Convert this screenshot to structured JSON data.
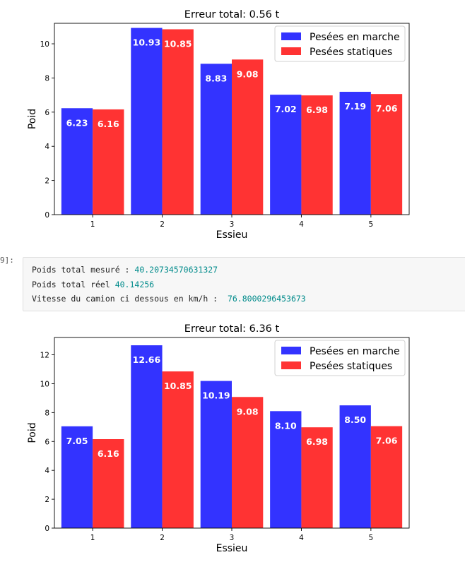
{
  "output_cell": {
    "prompt": "9]:",
    "lines": [
      {
        "label": "Poids total mesuré : ",
        "value": "40.20734570631327"
      },
      {
        "label": "Poids total réel ",
        "value": "40.14256"
      },
      {
        "label": "Vitesse du camion ci dessous en km/h :  ",
        "value": "76.8000296453673"
      }
    ]
  },
  "colors": {
    "marche": "#3333ff",
    "statique": "#ff3333"
  },
  "chart_data": [
    {
      "type": "bar",
      "title": "Erreur total: 0.56 t",
      "xlabel": "Essieu",
      "ylabel": "Poid",
      "categories": [
        "1",
        "2",
        "3",
        "4",
        "5"
      ],
      "ylim": [
        0,
        11.2
      ],
      "yticks": [
        0,
        2,
        4,
        6,
        8,
        10
      ],
      "legend": "top-right",
      "grid": false,
      "series": [
        {
          "name": "Pesées en marche",
          "values": [
            6.23,
            10.93,
            8.83,
            7.02,
            7.19
          ],
          "labels": [
            "6.23",
            "10.93",
            "8.83",
            "7.02",
            "7.19"
          ]
        },
        {
          "name": "Pesées statiques",
          "values": [
            6.16,
            10.85,
            9.08,
            6.98,
            7.06
          ],
          "labels": [
            "6.16",
            "10.85",
            "9.08",
            "6.98",
            "7.06"
          ]
        }
      ]
    },
    {
      "type": "bar",
      "title": "Erreur total: 6.36 t",
      "xlabel": "Essieu",
      "ylabel": "Poid",
      "categories": [
        "1",
        "2",
        "3",
        "4",
        "5"
      ],
      "ylim": [
        0,
        13.2
      ],
      "yticks": [
        0,
        2,
        4,
        6,
        8,
        10,
        12
      ],
      "legend": "top-right",
      "grid": false,
      "series": [
        {
          "name": "Pesées en marche",
          "values": [
            7.05,
            12.66,
            10.19,
            8.1,
            8.5
          ],
          "labels": [
            "7.05",
            "12.66",
            "10.19",
            "8.10",
            "8.50"
          ]
        },
        {
          "name": "Pesées statiques",
          "values": [
            6.16,
            10.85,
            9.08,
            6.98,
            7.06
          ],
          "labels": [
            "6.16",
            "10.85",
            "9.08",
            "6.98",
            "7.06"
          ]
        }
      ]
    }
  ]
}
